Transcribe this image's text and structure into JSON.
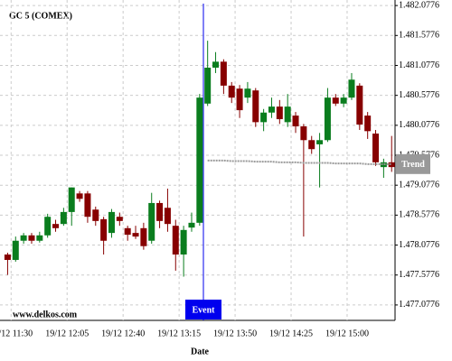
{
  "chart_data": {
    "type": "candlestick",
    "title": "GC 5 (COMEX)",
    "watermark": "www.delkos.com",
    "x_label": "Date",
    "categories": [
      null,
      "19/12 11:30",
      null,
      null,
      null,
      null,
      null,
      null,
      "19/12 12:05",
      null,
      null,
      null,
      null,
      null,
      null,
      "19/12 12:40",
      null,
      null,
      null,
      null,
      null,
      null,
      "19/12 13:15",
      null,
      null,
      null,
      null,
      null,
      null,
      "19/12 13:50",
      null,
      null,
      null,
      null,
      null,
      null,
      "19/12 14:25",
      null,
      null,
      null,
      null,
      null,
      null,
      "19/12 15:00",
      null,
      null,
      null,
      null,
      null
    ],
    "open": [
      1477.92,
      1477.83,
      1478.15,
      1478.24,
      1478.15,
      1478.24,
      1478.43,
      1478.43,
      1478.63,
      1478.94,
      1478.94,
      1478.67,
      1478.51,
      1478.28,
      1478.55,
      1478.36,
      1478.28,
      1478.36,
      1478.15,
      1478.78,
      1478.7,
      1478.4,
      1477.92,
      1478.37,
      1478.45,
      1480.44,
      1481.04,
      1481.14,
      1480.74,
      1480.69,
      1480.54,
      1480.66,
      1480.13,
      1480.29,
      1480.39,
      1480.13,
      1480.24,
      1480.06,
      1479.83,
      1479.76,
      1479.83,
      1480.54,
      1480.44,
      1480.54,
      1480.74,
      1480.24,
      1479.94,
      1479.38,
      1479.46
    ],
    "high": [
      1477.95,
      1478.22,
      1478.28,
      1478.28,
      1478.3,
      1478.6,
      1478.5,
      1478.7,
      1479.04,
      1478.98,
      1478.98,
      1478.72,
      1478.55,
      1478.68,
      1478.62,
      1478.4,
      1478.4,
      1478.45,
      1478.95,
      1478.82,
      1479.02,
      1478.5,
      1478.4,
      1478.62,
      1480.6,
      1481.49,
      1481.3,
      1481.18,
      1480.8,
      1480.75,
      1480.8,
      1480.7,
      1480.35,
      1480.54,
      1480.5,
      1480.6,
      1480.3,
      1480.1,
      1479.9,
      1479.95,
      1480.7,
      1480.6,
      1480.6,
      1480.95,
      1480.78,
      1480.3,
      1480.0,
      1479.52,
      1479.9
    ],
    "low": [
      1477.58,
      1477.8,
      1478.1,
      1478.1,
      1478.12,
      1478.2,
      1478.3,
      1478.4,
      1478.4,
      1478.8,
      1478.45,
      1478.4,
      1477.92,
      1478.2,
      1478.4,
      1478.15,
      1478.18,
      1478.0,
      1478.1,
      1478.36,
      1478.3,
      1477.65,
      1477.55,
      1478.3,
      1478.4,
      1480.4,
      1480.95,
      1480.6,
      1480.45,
      1480.2,
      1480.45,
      1480.05,
      1479.98,
      1480.2,
      1480.1,
      1480.05,
      1479.95,
      1478.22,
      1479.6,
      1479.04,
      1479.8,
      1480.4,
      1480.38,
      1480.5,
      1480.0,
      1479.85,
      1479.4,
      1479.2,
      1479.3
    ],
    "close": [
      1477.83,
      1478.15,
      1478.24,
      1478.15,
      1478.24,
      1478.55,
      1478.36,
      1478.63,
      1479.04,
      1478.85,
      1478.55,
      1478.48,
      1478.15,
      1478.63,
      1478.48,
      1478.25,
      1478.22,
      1478.06,
      1478.78,
      1478.48,
      1478.43,
      1477.92,
      1478.33,
      1478.45,
      1480.54,
      1481.04,
      1481.14,
      1480.74,
      1480.54,
      1480.33,
      1480.69,
      1480.13,
      1480.29,
      1480.39,
      1480.18,
      1480.39,
      1480.06,
      1479.83,
      1479.68,
      1479.83,
      1480.54,
      1480.44,
      1480.54,
      1480.84,
      1480.09,
      1479.98,
      1479.46,
      1479.46,
      1479.38
    ],
    "up_color": "#0a7d1e",
    "down_color": "#870000",
    "trend": {
      "name": "Trend",
      "color": "#999999",
      "values": [
        null,
        null,
        null,
        null,
        null,
        null,
        null,
        null,
        null,
        null,
        null,
        null,
        null,
        null,
        null,
        null,
        null,
        null,
        null,
        null,
        null,
        null,
        null,
        null,
        null,
        1479.49,
        1479.49,
        1479.49,
        1479.48,
        1479.48,
        1479.48,
        1479.47,
        1479.47,
        1479.47,
        1479.46,
        1479.46,
        1479.46,
        1479.45,
        1479.45,
        1479.45,
        1479.45,
        1479.44,
        1479.44,
        1479.44,
        1479.44,
        1479.43,
        1479.43,
        1479.43,
        1479.43
      ]
    },
    "event": {
      "label": "Event",
      "color": "#0000ee"
    },
    "ylim": [
      1476.82,
      1482.17
    ],
    "yticks": [
      {
        "value": 1477.0776,
        "label": "1.477.0776"
      },
      {
        "value": 1477.5776,
        "label": "1.477.5776"
      },
      {
        "value": 1478.0776,
        "label": "1.478.0776"
      },
      {
        "value": 1478.5776,
        "label": "1.478.5776"
      },
      {
        "value": 1479.0776,
        "label": "1.479.0776"
      },
      {
        "value": 1479.5776,
        "label": "1.479.5776"
      },
      {
        "value": 1480.0776,
        "label": "1.480.0776"
      },
      {
        "value": 1480.5776,
        "label": "1.480.5776"
      },
      {
        "value": 1481.0776,
        "label": "1.481.0776"
      },
      {
        "value": 1481.5776,
        "label": "1.481.5776"
      },
      {
        "value": 1482.0776,
        "label": "1.482.0776"
      }
    ],
    "grid": true
  }
}
